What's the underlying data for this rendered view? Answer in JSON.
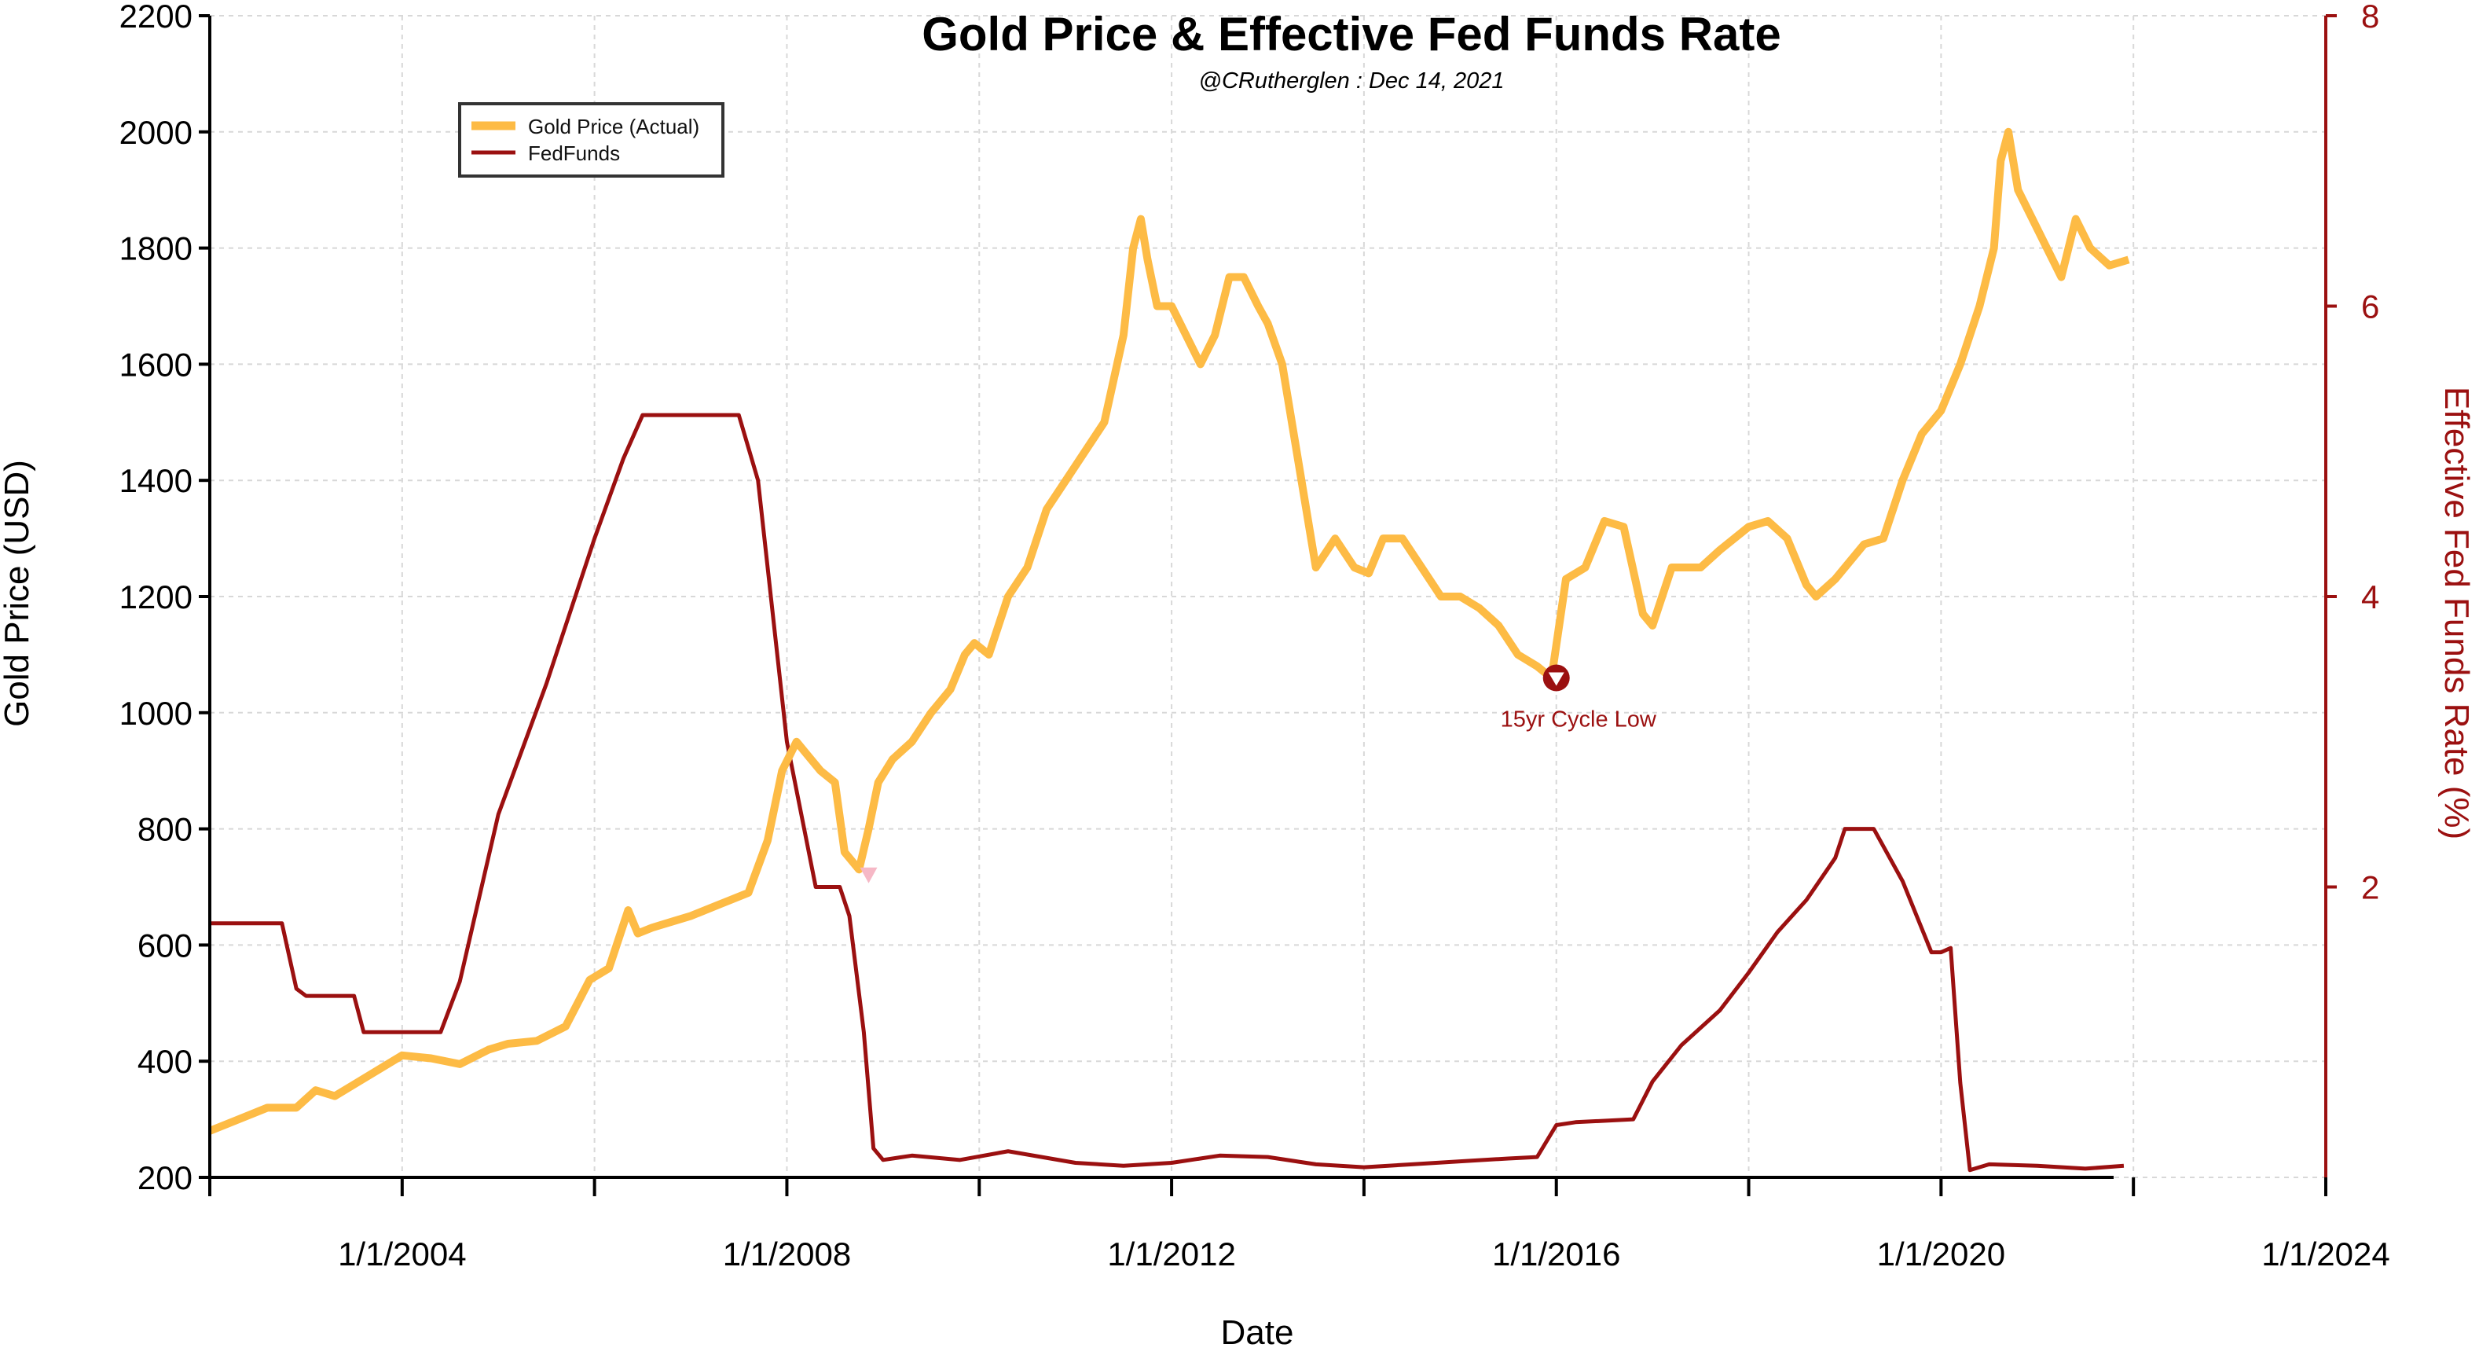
{
  "colors": {
    "gold": "#fdbb45",
    "fedfunds": "#9b1010",
    "grid": "#d8d8d8",
    "axis": "#000000",
    "right_axis": "#9b1010",
    "gold_marker": "#f6b8c6"
  },
  "chart_data": {
    "type": "line",
    "title": "Gold Price & Effective Fed Funds Rate",
    "subtitle": "@CRutherglen : Dec 14, 2021",
    "xlabel": "Date",
    "ylabel": "Gold Price (USD)",
    "ylabel_right": "Effective Fed Funds Rate (%)",
    "xlim": [
      2002.0,
      2024.0
    ],
    "ylim": [
      200,
      2200
    ],
    "ylim_right": [
      0,
      8
    ],
    "x_ticks": [
      2002,
      2004,
      2006,
      2008,
      2010,
      2012,
      2014,
      2016,
      2018,
      2020,
      2022,
      2024
    ],
    "x_tick_labels": [
      "1/1/2004",
      "1/1/2008",
      "1/1/2012",
      "1/1/2016",
      "1/1/2020",
      "1/1/2024"
    ],
    "x_tick_label_years": [
      2004,
      2008,
      2012,
      2016,
      2020,
      2024
    ],
    "y_ticks": [
      200,
      400,
      600,
      800,
      1000,
      1200,
      1400,
      1600,
      1800,
      2000,
      2200
    ],
    "y_ticks_right": [
      2,
      4,
      6,
      8
    ],
    "grid": true,
    "legend_position": "top-left",
    "series": [
      {
        "name": "Gold Price (Actual)",
        "axis": "left",
        "x": [
          2002.0,
          2002.3,
          2002.6,
          2002.9,
          2003.1,
          2003.3,
          2003.5,
          2003.8,
          2004.0,
          2004.3,
          2004.6,
          2004.9,
          2005.1,
          2005.4,
          2005.7,
          2005.95,
          2006.15,
          2006.35,
          2006.45,
          2006.6,
          2006.8,
          2007.0,
          2007.3,
          2007.6,
          2007.8,
          2007.95,
          2008.1,
          2008.2,
          2008.35,
          2008.5,
          2008.6,
          2008.75,
          2008.85,
          2008.95,
          2009.1,
          2009.3,
          2009.5,
          2009.7,
          2009.85,
          2009.95,
          2010.1,
          2010.3,
          2010.5,
          2010.7,
          2010.9,
          2011.1,
          2011.3,
          2011.5,
          2011.6,
          2011.68,
          2011.75,
          2011.85,
          2012.0,
          2012.15,
          2012.3,
          2012.45,
          2012.6,
          2012.75,
          2012.9,
          2013.0,
          2013.15,
          2013.3,
          2013.4,
          2013.5,
          2013.7,
          2013.9,
          2014.05,
          2014.2,
          2014.4,
          2014.6,
          2014.8,
          2015.0,
          2015.2,
          2015.4,
          2015.6,
          2015.8,
          2015.95,
          2016.1,
          2016.3,
          2016.5,
          2016.7,
          2016.9,
          2017.0,
          2017.2,
          2017.5,
          2017.7,
          2018.0,
          2018.2,
          2018.4,
          2018.6,
          2018.7,
          2018.9,
          2019.2,
          2019.4,
          2019.6,
          2019.8,
          2020.0,
          2020.2,
          2020.4,
          2020.55,
          2020.62,
          2020.7,
          2020.8,
          2020.95,
          2021.1,
          2021.25,
          2021.4,
          2021.55,
          2021.75,
          2021.95
        ],
        "values": [
          280,
          300,
          320,
          320,
          350,
          340,
          360,
          390,
          410,
          405,
          395,
          420,
          430,
          435,
          460,
          540,
          560,
          660,
          620,
          630,
          640,
          650,
          670,
          690,
          780,
          900,
          950,
          930,
          900,
          880,
          760,
          730,
          800,
          880,
          920,
          950,
          1000,
          1040,
          1100,
          1120,
          1100,
          1200,
          1250,
          1350,
          1400,
          1450,
          1500,
          1650,
          1800,
          1850,
          1780,
          1700,
          1700,
          1650,
          1600,
          1650,
          1750,
          1750,
          1700,
          1670,
          1600,
          1450,
          1350,
          1250,
          1300,
          1250,
          1240,
          1300,
          1300,
          1250,
          1200,
          1200,
          1180,
          1150,
          1100,
          1080,
          1060,
          1230,
          1250,
          1330,
          1320,
          1170,
          1150,
          1250,
          1250,
          1280,
          1320,
          1330,
          1300,
          1220,
          1200,
          1230,
          1290,
          1300,
          1400,
          1480,
          1520,
          1600,
          1700,
          1800,
          1950,
          2000,
          1900,
          1850,
          1800,
          1750,
          1850,
          1800,
          1770,
          1780
        ]
      },
      {
        "name": "FedFunds",
        "axis": "right",
        "x": [
          2002.0,
          2002.75,
          2002.9,
          2003.0,
          2003.5,
          2003.6,
          2004.0,
          2004.4,
          2004.6,
          2005.0,
          2005.5,
          2006.0,
          2006.3,
          2006.5,
          2007.0,
          2007.5,
          2007.7,
          2008.0,
          2008.3,
          2008.55,
          2008.65,
          2008.8,
          2008.9,
          2009.0,
          2009.3,
          2009.8,
          2010.3,
          2011.0,
          2011.5,
          2012.0,
          2012.5,
          2013.0,
          2013.5,
          2014.0,
          2014.5,
          2015.0,
          2015.5,
          2015.8,
          2016.0,
          2016.2,
          2016.8,
          2017.0,
          2017.3,
          2017.7,
          2018.0,
          2018.3,
          2018.6,
          2018.9,
          2019.0,
          2019.3,
          2019.6,
          2019.9,
          2020.0,
          2020.1,
          2020.2,
          2020.3,
          2020.5,
          2021.0,
          2021.5,
          2021.9
        ],
        "values": [
          1.75,
          1.75,
          1.3,
          1.25,
          1.25,
          1.0,
          1.0,
          1.0,
          1.35,
          2.5,
          3.4,
          4.4,
          4.95,
          5.25,
          5.25,
          5.25,
          4.8,
          3.0,
          2.0,
          2.0,
          1.8,
          1.0,
          0.2,
          0.12,
          0.15,
          0.12,
          0.18,
          0.1,
          0.08,
          0.1,
          0.15,
          0.14,
          0.09,
          0.07,
          0.09,
          0.11,
          0.13,
          0.14,
          0.36,
          0.38,
          0.4,
          0.66,
          0.91,
          1.15,
          1.41,
          1.69,
          1.91,
          2.2,
          2.4,
          2.4,
          2.04,
          1.55,
          1.55,
          1.58,
          0.65,
          0.05,
          0.09,
          0.08,
          0.06,
          0.08
        ]
      }
    ],
    "annotations": [
      {
        "text": "15yr Cycle Low",
        "x": 2016.0,
        "y": 1060,
        "axis": "left"
      }
    ],
    "markers": [
      {
        "x": 2008.85,
        "y": 720,
        "axis": "left"
      }
    ]
  }
}
